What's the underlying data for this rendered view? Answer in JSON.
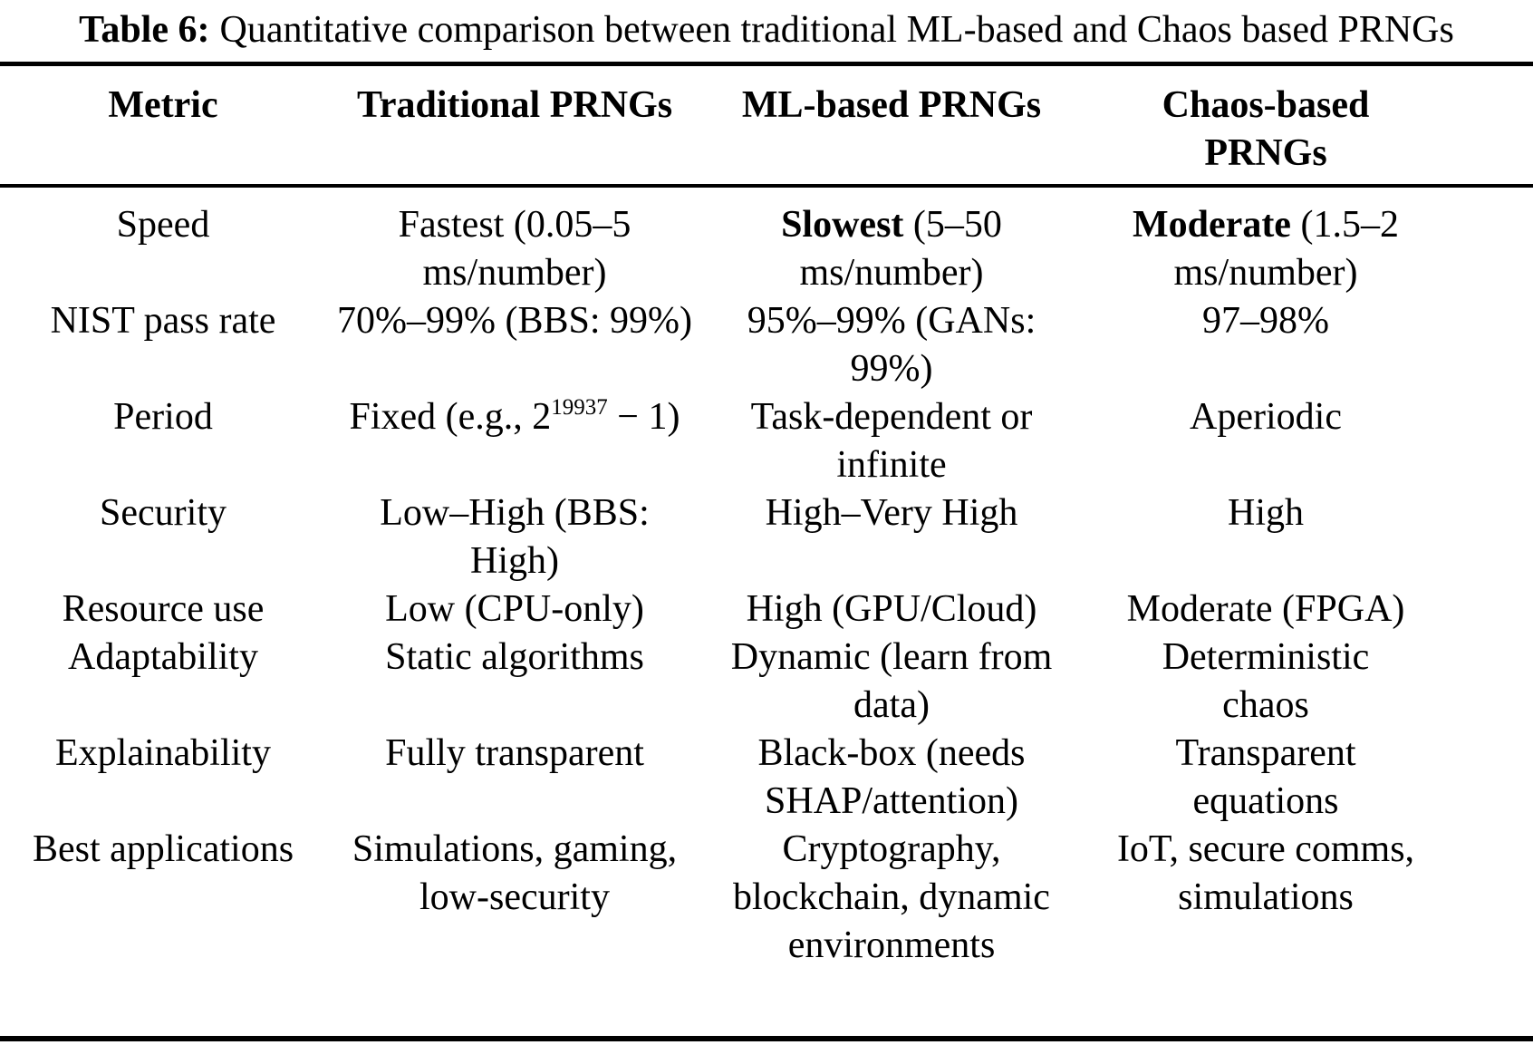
{
  "colors": {
    "text": "#000000",
    "background": "#ffffff",
    "rule": "#000000"
  },
  "caption": {
    "label": "Table 6:",
    "text": "Quantitative comparison between traditional ML-based and Chaos based PRNGs"
  },
  "table": {
    "columns": [
      "Metric",
      "Traditional PRNGs",
      "ML-based PRNGs",
      "Chaos-based\nPRNGs"
    ],
    "rows": [
      {
        "metric": "Speed",
        "traditional": {
          "text": "Fastest (0.05–5\nms/number)"
        },
        "ml": {
          "bold": "Slowest",
          "text": " (5–50\nms/number)"
        },
        "chaos": {
          "bold": "Moderate",
          "text": " (1.5–2\nms/number)"
        }
      },
      {
        "metric": "NIST pass rate",
        "traditional": {
          "text": "70%–99% (BBS: 99%)"
        },
        "ml": {
          "text": "95%–99% (GANs:\n99%)"
        },
        "chaos": {
          "text": "97–98%"
        }
      },
      {
        "metric": "Period",
        "traditional": {
          "text": "Fixed (e.g., 2",
          "sup": "19937",
          "after": " − 1)"
        },
        "ml": {
          "text": "Task-dependent or\ninfinite"
        },
        "chaos": {
          "text": "Aperiodic"
        }
      },
      {
        "metric": "Security",
        "traditional": {
          "text": "Low–High (BBS:\nHigh)"
        },
        "ml": {
          "text": "High–Very High"
        },
        "chaos": {
          "text": "High"
        }
      },
      {
        "metric": "Resource use",
        "traditional": {
          "text": "Low (CPU-only)"
        },
        "ml": {
          "text": "High (GPU/Cloud)"
        },
        "chaos": {
          "text": "Moderate (FPGA)"
        }
      },
      {
        "metric": "Adaptability",
        "traditional": {
          "text": "Static algorithms"
        },
        "ml": {
          "text": "Dynamic (learn from\ndata)"
        },
        "chaos": {
          "text": "Deterministic\nchaos"
        }
      },
      {
        "metric": "Explainability",
        "traditional": {
          "text": "Fully transparent"
        },
        "ml": {
          "text": "Black-box (needs\nSHAP/attention)"
        },
        "chaos": {
          "text": "Transparent\nequations"
        }
      },
      {
        "metric": "Best applications",
        "traditional": {
          "text": "Simulations, gaming,\nlow-security"
        },
        "ml": {
          "text": "Cryptography,\nblockchain, dynamic\nenvironments"
        },
        "chaos": {
          "text": "IoT, secure comms,\nsimulations"
        }
      }
    ]
  }
}
